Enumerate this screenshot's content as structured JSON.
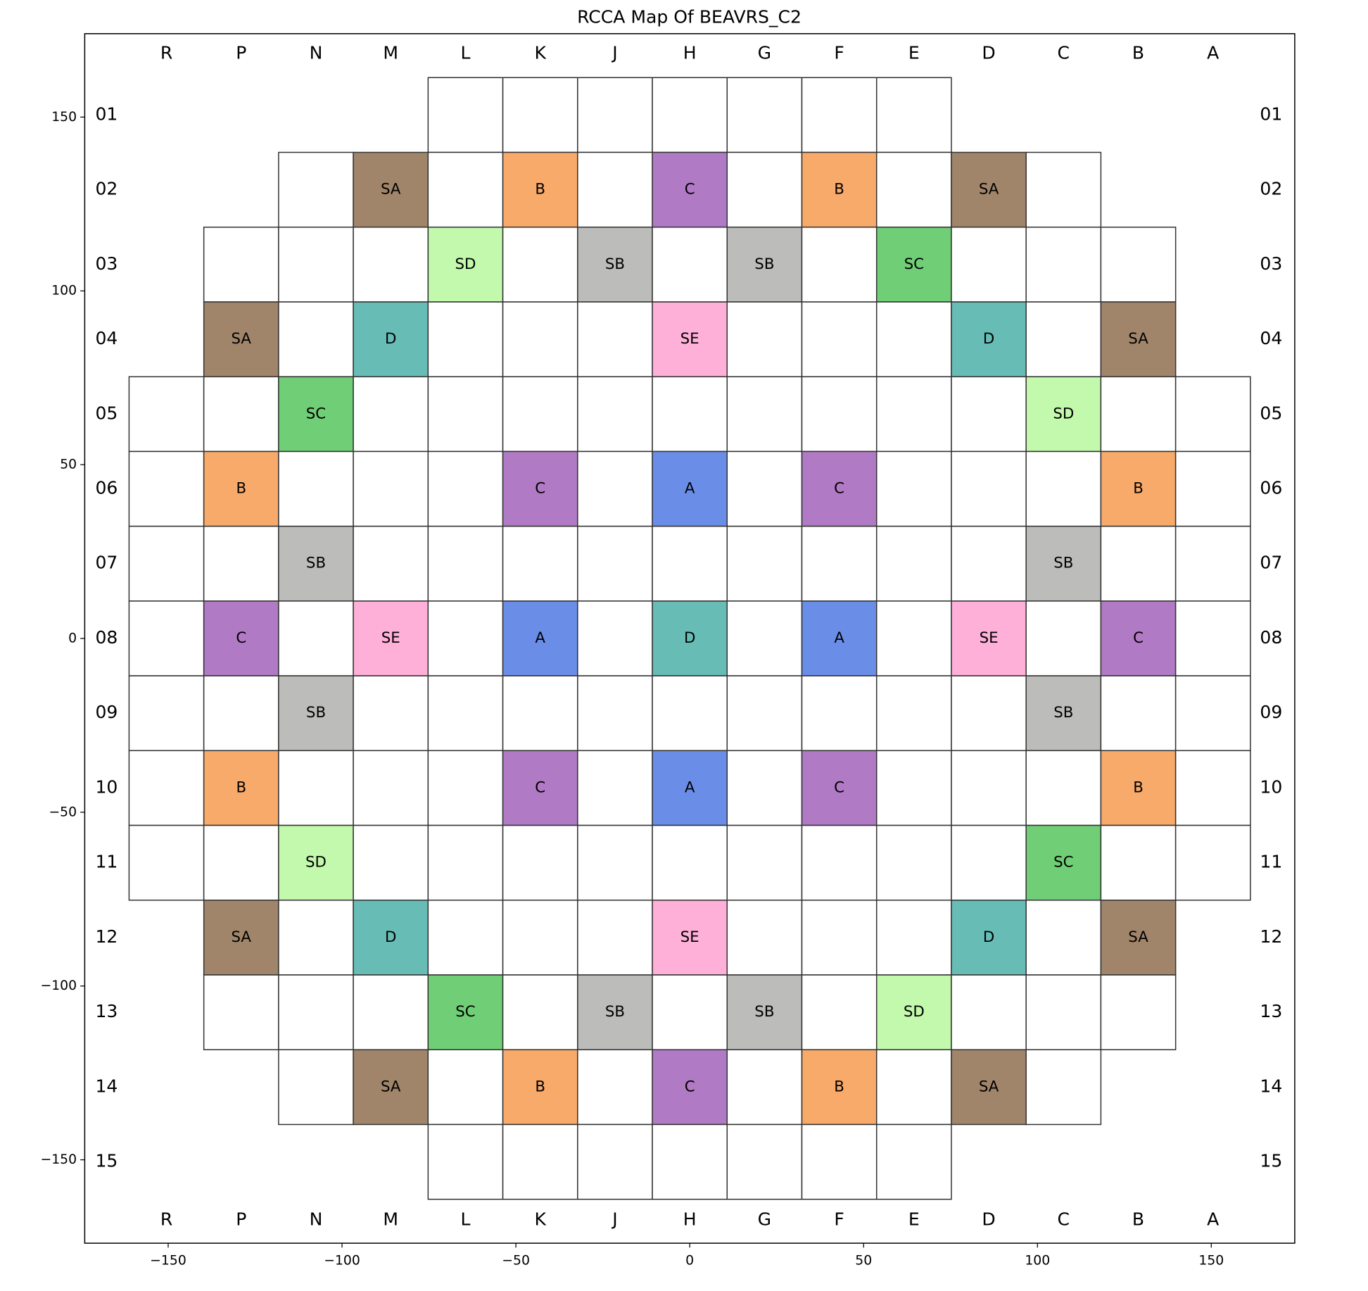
{
  "chart_data": {
    "type": "core-map",
    "title": "RCCA Map Of BEAVRS_C2",
    "columns": [
      "R",
      "P",
      "N",
      "M",
      "L",
      "K",
      "J",
      "H",
      "G",
      "F",
      "E",
      "D",
      "C",
      "B",
      "A"
    ],
    "rows": [
      "01",
      "02",
      "03",
      "04",
      "05",
      "06",
      "07",
      "08",
      "09",
      "10",
      "11",
      "12",
      "13",
      "14",
      "15"
    ],
    "xlim": [
      -174,
      174
    ],
    "ylim": [
      -174,
      174
    ],
    "xticks": [
      {
        "value": -150,
        "label": "−150"
      },
      {
        "value": -100,
        "label": "−100"
      },
      {
        "value": -50,
        "label": "−50"
      },
      0,
      50,
      100,
      150
    ],
    "yticks": [
      150,
      100,
      50,
      0,
      {
        "value": -50,
        "label": "−50"
      },
      {
        "value": -100,
        "label": "−100"
      },
      {
        "value": -150,
        "label": "−150"
      }
    ],
    "bank_colors": {
      "SA": "#a0856a",
      "B": "#f8aa6a",
      "C": "#b07ac4",
      "SD": "#c2f9ac",
      "SB": "#bcbdba",
      "SC": "#70cf76",
      "D": "#67bdb5",
      "SE": "#feb0d8",
      "A": "#6a8de8"
    },
    "map": [
      [
        null,
        null,
        null,
        null,
        null,
        null,
        null,
        null,
        null,
        null,
        null,
        null,
        null,
        null,
        null
      ],
      [
        null,
        null,
        null,
        "SA",
        null,
        "B",
        null,
        "C",
        null,
        "B",
        null,
        "SA",
        null,
        null,
        null
      ],
      [
        null,
        null,
        null,
        null,
        "SD",
        null,
        "SB",
        null,
        "SB",
        null,
        "SC",
        null,
        null,
        null,
        null
      ],
      [
        null,
        "SA",
        null,
        "D",
        null,
        null,
        null,
        "SE",
        null,
        null,
        null,
        "D",
        null,
        "SA",
        null
      ],
      [
        null,
        null,
        "SC",
        null,
        null,
        null,
        null,
        null,
        null,
        null,
        null,
        null,
        "SD",
        null,
        null
      ],
      [
        null,
        "B",
        null,
        null,
        null,
        "C",
        null,
        "A",
        null,
        "C",
        null,
        null,
        null,
        "B",
        null
      ],
      [
        null,
        null,
        "SB",
        null,
        null,
        null,
        null,
        null,
        null,
        null,
        null,
        null,
        "SB",
        null,
        null
      ],
      [
        null,
        "C",
        null,
        "SE",
        null,
        "A",
        null,
        "D",
        null,
        "A",
        null,
        "SE",
        null,
        "C",
        null
      ],
      [
        null,
        null,
        "SB",
        null,
        null,
        null,
        null,
        null,
        null,
        null,
        null,
        null,
        "SB",
        null,
        null
      ],
      [
        null,
        "B",
        null,
        null,
        null,
        "C",
        null,
        "A",
        null,
        "C",
        null,
        null,
        null,
        "B",
        null
      ],
      [
        null,
        null,
        "SD",
        null,
        null,
        null,
        null,
        null,
        null,
        null,
        null,
        null,
        "SC",
        null,
        null
      ],
      [
        null,
        "SA",
        null,
        "D",
        null,
        null,
        null,
        "SE",
        null,
        null,
        null,
        "D",
        null,
        "SA",
        null
      ],
      [
        null,
        null,
        null,
        null,
        "SC",
        null,
        "SB",
        null,
        "SB",
        null,
        "SD",
        null,
        null,
        null,
        null
      ],
      [
        null,
        null,
        null,
        "SA",
        null,
        "B",
        null,
        "C",
        null,
        "B",
        null,
        "SA",
        null,
        null,
        null
      ],
      [
        null,
        null,
        null,
        null,
        null,
        null,
        null,
        null,
        null,
        null,
        null,
        null,
        null,
        null,
        null
      ]
    ]
  }
}
